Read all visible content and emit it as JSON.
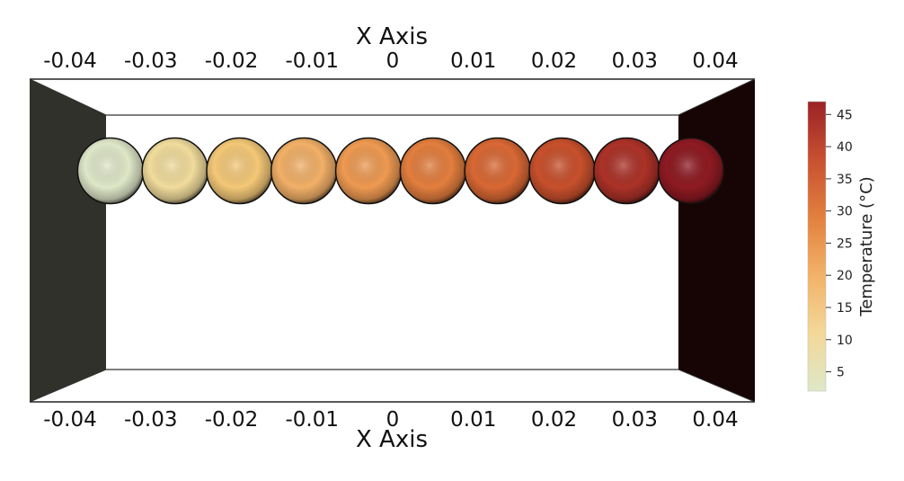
{
  "scene": {
    "top_axis": {
      "title": "X Axis",
      "ticks": [
        "-0.04",
        "-0.03",
        "-0.02",
        "-0.01",
        "0",
        "0.01",
        "0.02",
        "0.03",
        "0.04"
      ]
    },
    "bottom_axis": {
      "title": "X Axis",
      "ticks": [
        "-0.04",
        "-0.03",
        "-0.02",
        "-0.01",
        "0",
        "0.01",
        "0.02",
        "0.03",
        "0.04"
      ]
    },
    "walls": {
      "left_color": "#2f312a",
      "right_color": "#170404"
    },
    "spheres": [
      {
        "x": -0.035,
        "temperature": 3,
        "color": "#dfe7c8"
      },
      {
        "x": -0.027,
        "temperature": 9,
        "color": "#f1dc9c"
      },
      {
        "x": -0.019,
        "temperature": 14,
        "color": "#f4c878"
      },
      {
        "x": -0.011,
        "temperature": 19,
        "color": "#f2b068"
      },
      {
        "x": -0.003,
        "temperature": 24,
        "color": "#ee9a52"
      },
      {
        "x": 0.005,
        "temperature": 28,
        "color": "#e37e3e"
      },
      {
        "x": 0.013,
        "temperature": 32,
        "color": "#d96834"
      },
      {
        "x": 0.021,
        "temperature": 36,
        "color": "#c8502c"
      },
      {
        "x": 0.029,
        "temperature": 41,
        "color": "#ac3228"
      },
      {
        "x": 0.037,
        "temperature": 47,
        "color": "#8e1a22"
      }
    ]
  },
  "colorbar": {
    "title": "Temperature (°C)",
    "range": [
      2,
      47
    ],
    "ticks": [
      "5",
      "10",
      "15",
      "20",
      "25",
      "30",
      "35",
      "40",
      "45"
    ],
    "colors": [
      "#dee8c8",
      "#f3d898",
      "#f2b268",
      "#e2803e",
      "#c85030",
      "#9b2226"
    ]
  }
}
